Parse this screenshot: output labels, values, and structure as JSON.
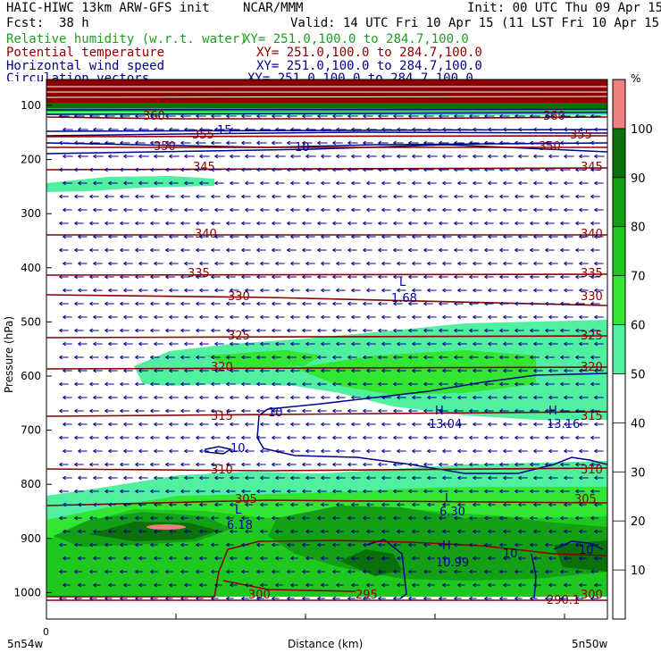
{
  "header": {
    "model": "HAIC-HIWC 13km ARW-GFS init",
    "org": "NCAR/MMM",
    "init": "Init: 00 UTC Thu 09 Apr 15",
    "fcst_label": "Fcst:",
    "fcst_value": "38 h",
    "valid": "Valid: 14 UTC Fri 10 Apr 15 (11 LST Fri 10 Apr 15)"
  },
  "fields": [
    {
      "name": "Relative humidity (w.r.t. water)",
      "xy": "XY= 251.0,100.0 to 284.7,100.0",
      "color": "#1e9e1e"
    },
    {
      "name": "Potential temperature",
      "xy": "XY= 251.0,100.0 to 284.7,100.0",
      "color": "#8b0000"
    },
    {
      "name": "Horizontal wind speed",
      "xy": "XY= 251.0,100.0 to 284.7,100.0",
      "color": "#00008b"
    },
    {
      "name": "Circulation vectors",
      "xy": "XY= 251.0,100.0 to 284.7,100.0",
      "color": "#00008b"
    }
  ],
  "chart_data": {
    "type": "heatmap",
    "ylabel": "Pressure (hPa)",
    "xlabel": "Distance (km)",
    "x_left_label": "5n54w",
    "x_right_label": "5n50w",
    "x_origin": "0",
    "y_ticks": [
      "100",
      "200",
      "300",
      "400",
      "500",
      "600",
      "700",
      "800",
      "900",
      "1000"
    ],
    "colorbar": {
      "unit": "%",
      "labels": [
        "10",
        "20",
        "30",
        "40",
        "50",
        "60",
        "70",
        "80",
        "90",
        "100"
      ],
      "colors": [
        "#ffffff",
        "#ffffff",
        "#ffffff",
        "#ffffff",
        "#ffffff",
        "#50f0a0",
        "#32e632",
        "#1ec81e",
        "#14a014",
        "#0a700a",
        "#f08080"
      ]
    },
    "theta_labels": [
      {
        "v": "360",
        "row": 1
      },
      {
        "v": "355",
        "row": 2
      },
      {
        "v": "350",
        "row": 3
      },
      {
        "v": "345",
        "row": 4
      },
      {
        "v": "340",
        "row": 5
      },
      {
        "v": "335",
        "row": 6
      },
      {
        "v": "330",
        "row": 7
      },
      {
        "v": "325",
        "row": 8
      },
      {
        "v": "320",
        "row": 9
      },
      {
        "v": "315",
        "row": 10
      },
      {
        "v": "310",
        "row": 11
      },
      {
        "v": "305",
        "row": 12
      },
      {
        "v": "300",
        "row": 13
      },
      {
        "v": "300",
        "row": 14
      },
      {
        "v": "295",
        "row": 15
      },
      {
        "v": "290.1",
        "row": 16
      }
    ],
    "wind_labels": [
      "15",
      "10",
      "10",
      "10",
      "10",
      "10"
    ],
    "extrema": [
      {
        "type": "L",
        "value": "1.68"
      },
      {
        "type": "H",
        "value": "13.04"
      },
      {
        "type": "H",
        "value": "13.16"
      },
      {
        "type": "L",
        "value": "6.18"
      },
      {
        "type": "L",
        "value": "6.30"
      },
      {
        "type": "H",
        "value": "10.99"
      }
    ]
  }
}
